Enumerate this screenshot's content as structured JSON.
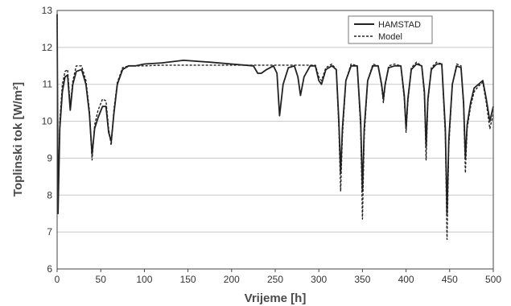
{
  "chart_data": {
    "type": "line",
    "xlabel": "Vrijeme [h]",
    "ylabel": "Toplinski tok [W/m²]",
    "xlim": [
      0,
      500
    ],
    "ylim": [
      6,
      13
    ],
    "x_ticks": [
      0,
      50,
      100,
      150,
      200,
      250,
      300,
      350,
      400,
      450,
      500
    ],
    "y_ticks": [
      6,
      7,
      8,
      9,
      10,
      11,
      12,
      13
    ],
    "grid": "horizontal",
    "legend_position": "top-right",
    "series": [
      {
        "name": "HAMSTAD",
        "style": "solid",
        "color": "#222222",
        "x": [
          0,
          1,
          3,
          6,
          9,
          12,
          15,
          18,
          22,
          28,
          33,
          37,
          40,
          43,
          47,
          52,
          56,
          59,
          62,
          65,
          69,
          75,
          82,
          90,
          100,
          120,
          145,
          175,
          200,
          225,
          230,
          234,
          240,
          248,
          252,
          255,
          259,
          265,
          272,
          276,
          279,
          283,
          290,
          296,
          300,
          303,
          308,
          315,
          320,
          323,
          325,
          327,
          331,
          337,
          344,
          348,
          350,
          352,
          356,
          362,
          368,
          372,
          374,
          376,
          380,
          387,
          394,
          398,
          400,
          402,
          406,
          412,
          418,
          421,
          423,
          425,
          429,
          435,
          441,
          445,
          447,
          449,
          453,
          458,
          463,
          466,
          468,
          470,
          474,
          478,
          483,
          488,
          492,
          496,
          500
        ],
        "y": [
          12.9,
          7.5,
          9.8,
          10.8,
          11.2,
          11.25,
          10.3,
          11.0,
          11.35,
          11.4,
          11.0,
          10.2,
          9.1,
          9.8,
          10.1,
          10.4,
          10.4,
          9.7,
          9.45,
          10.2,
          11.0,
          11.4,
          11.5,
          11.5,
          11.55,
          11.58,
          11.65,
          11.6,
          11.55,
          11.5,
          11.3,
          11.3,
          11.4,
          11.5,
          11.3,
          10.15,
          11.0,
          11.45,
          11.5,
          11.2,
          10.7,
          11.2,
          11.5,
          11.5,
          11.1,
          11.0,
          11.4,
          11.5,
          11.4,
          10.0,
          8.6,
          9.8,
          11.1,
          11.5,
          11.5,
          10.0,
          8.1,
          9.8,
          11.1,
          11.5,
          11.5,
          11.0,
          10.6,
          11.0,
          11.45,
          11.5,
          11.5,
          10.7,
          9.8,
          10.6,
          11.4,
          11.55,
          11.5,
          10.8,
          9.3,
          10.6,
          11.4,
          11.55,
          11.55,
          9.8,
          7.5,
          9.5,
          11.0,
          11.5,
          11.45,
          10.5,
          9.0,
          9.9,
          10.5,
          10.9,
          11.0,
          11.1,
          10.6,
          10.0,
          10.4
        ]
      },
      {
        "name": "Model",
        "style": "dashed",
        "color": "#222222",
        "x": [
          0,
          1,
          3,
          6,
          9,
          12,
          15,
          18,
          22,
          28,
          33,
          37,
          40,
          43,
          47,
          52,
          56,
          59,
          62,
          65,
          69,
          75,
          82,
          90,
          100,
          120,
          145,
          175,
          200,
          225,
          230,
          234,
          240,
          248,
          252,
          255,
          259,
          265,
          272,
          276,
          279,
          283,
          290,
          296,
          300,
          303,
          308,
          315,
          320,
          323,
          325,
          327,
          331,
          337,
          344,
          348,
          350,
          352,
          356,
          362,
          368,
          372,
          374,
          376,
          380,
          387,
          394,
          398,
          400,
          402,
          406,
          412,
          418,
          421,
          423,
          425,
          429,
          435,
          441,
          445,
          447,
          449,
          453,
          458,
          463,
          466,
          468,
          470,
          474,
          478,
          483,
          488,
          492,
          496,
          500
        ],
        "y": [
          12.9,
          7.6,
          10.0,
          11.0,
          11.35,
          11.4,
          10.4,
          11.1,
          11.5,
          11.5,
          11.1,
          10.3,
          8.95,
          9.9,
          10.3,
          10.6,
          10.55,
          9.8,
          9.35,
          10.3,
          11.05,
          11.45,
          11.5,
          11.5,
          11.5,
          11.52,
          11.52,
          11.52,
          11.52,
          11.52,
          11.52,
          11.52,
          11.52,
          11.52,
          11.52,
          11.52,
          11.52,
          11.52,
          11.52,
          11.52,
          11.52,
          11.52,
          11.52,
          11.52,
          11.2,
          11.1,
          11.45,
          11.55,
          11.4,
          9.8,
          8.1,
          9.6,
          11.1,
          11.55,
          11.5,
          9.8,
          7.35,
          9.6,
          11.1,
          11.55,
          11.5,
          10.95,
          10.5,
          10.95,
          11.5,
          11.55,
          11.5,
          10.6,
          9.7,
          10.5,
          11.45,
          11.6,
          11.5,
          10.7,
          8.95,
          10.5,
          11.45,
          11.6,
          11.55,
          9.6,
          6.8,
          9.3,
          11.0,
          11.55,
          11.5,
          10.4,
          8.6,
          9.8,
          10.4,
          10.8,
          10.95,
          11.05,
          10.5,
          9.8,
          10.2
        ]
      }
    ]
  }
}
